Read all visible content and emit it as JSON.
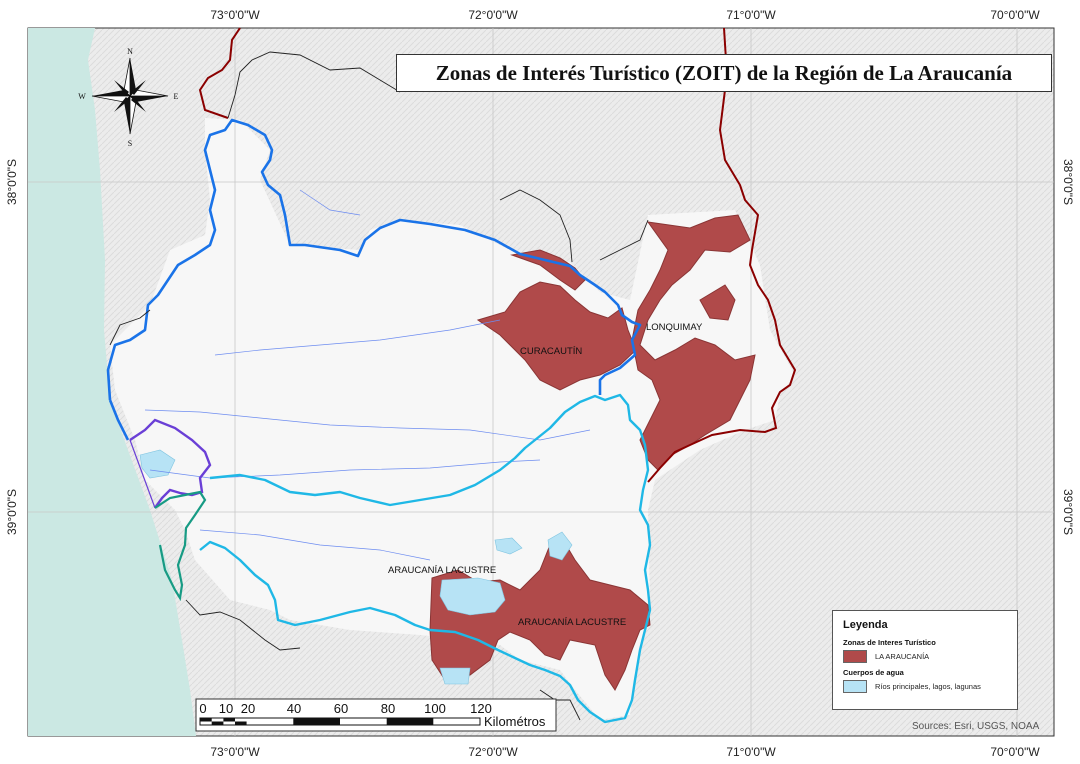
{
  "map": {
    "title": "Zonas de Interés Turístico (ZOIT) de la Región de La Araucanía",
    "coords": {
      "top": [
        "73°0'0\"W",
        "72°0'0\"W",
        "71°0'0\"W",
        "70°0'0\"W"
      ],
      "bottom": [
        "73°0'0\"W",
        "72°0'0\"W",
        "71°0'0\"W",
        "70°0'0\"W"
      ],
      "left": [
        "38°0'0\"S",
        "39°0'0\"S"
      ],
      "right": [
        "38°0'0\"S",
        "39°0'0\"S"
      ]
    },
    "labels": {
      "curacautin": "CURACAUTÍN",
      "lonquimay": "LONQUIMAY",
      "lacustre_1": "ARAUCANÍA LACUSTRE",
      "lacustre_2": "ARAUCANÍA LACUSTRE"
    },
    "compass": {
      "n": "N",
      "s": "S",
      "e": "E",
      "w": "W"
    },
    "scale": {
      "ticks": [
        "0",
        "10",
        "20",
        "40",
        "60",
        "80",
        "100",
        "120"
      ],
      "unit": "Kilométros"
    },
    "legend": {
      "title": "Leyenda",
      "group_zoit": "Zonas de Interes Turístico",
      "zoit_label": "LA ARAUCANÍA",
      "group_water": "Cuerpos de agua",
      "water_label": "Ríos principales, lagos, lagunas"
    },
    "sources": "Sources: Esri, USGS, NOAA",
    "colors": {
      "zoit": "#b04a4a",
      "water": "#b7e3f5",
      "ocean": "#cbe8e3",
      "border_intl": "#8b0000",
      "blue_line": "#1a73e8",
      "cyan_line": "#1fb8e6",
      "purple_line": "#6a3fd6",
      "teal_line": "#179b84"
    }
  }
}
